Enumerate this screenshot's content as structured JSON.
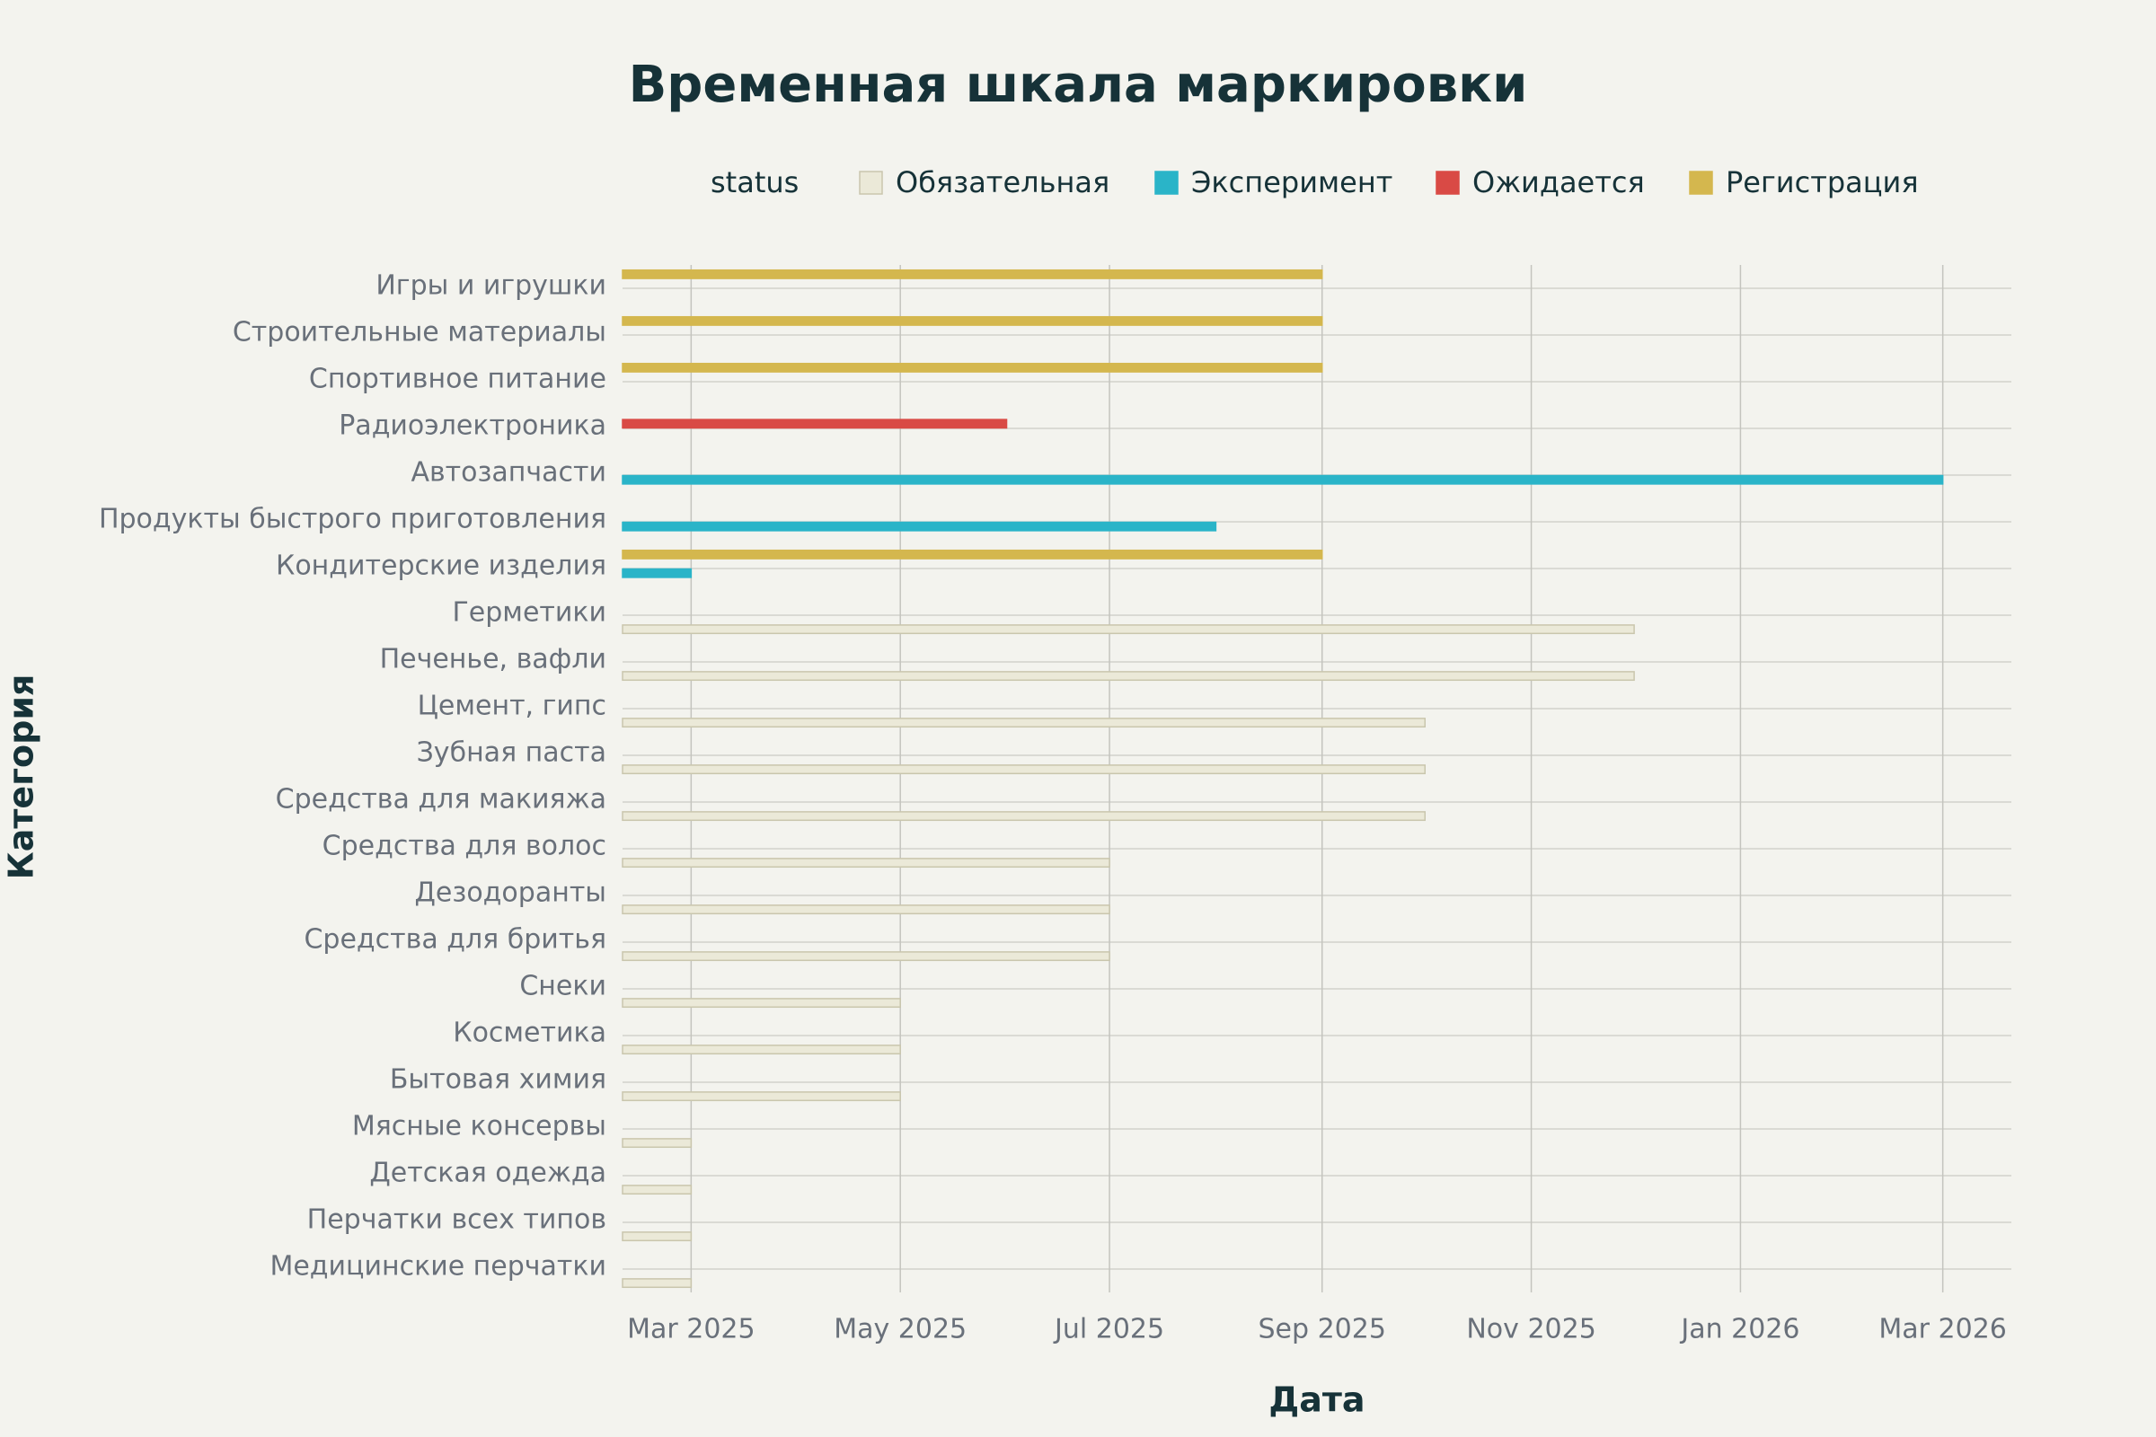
{
  "chart_data": {
    "type": "timeline",
    "title": "Временная шкала маркировки",
    "x_label": "Дата",
    "y_label": "Категория",
    "legend_title": "status",
    "categories": [
      "Игры и игрушки",
      "Строительные материалы",
      "Спортивное питание",
      "Радиоэлектроника",
      "Автозапчасти",
      "Продукты быстрого приготовления",
      "Кондитерские изделия",
      "Герметики",
      "Печенье, вафли",
      "Цемент, гипс",
      "Зубная паста",
      "Средства для макияжа",
      "Средства для волос",
      "Дезодоранты",
      "Средства для бритья",
      "Снеки",
      "Косметика",
      "Бытовая химия",
      "Мясные консервы",
      "Детская одежда",
      "Перчатки всех типов",
      "Медицинские перчатки"
    ],
    "xlim": [
      "2025-02-09",
      "2026-03-21"
    ],
    "xticks": [
      {
        "value": "2025-03-01",
        "label": "Mar 2025"
      },
      {
        "value": "2025-05-01",
        "label": "May 2025"
      },
      {
        "value": "2025-07-01",
        "label": "Jul 2025"
      },
      {
        "value": "2025-09-01",
        "label": "Sep 2025"
      },
      {
        "value": "2025-11-01",
        "label": "Nov 2025"
      },
      {
        "value": "2026-01-01",
        "label": "Jan 2026"
      },
      {
        "value": "2026-03-01",
        "label": "Mar 2026"
      }
    ],
    "grid": true,
    "series": [
      {
        "name": "Обязательная",
        "color": "#ebe9d8",
        "tasks": [
          {
            "category": "Герметики",
            "start": "2025-02-09",
            "end": "2025-12-01"
          },
          {
            "category": "Печенье, вафли",
            "start": "2025-02-09",
            "end": "2025-12-01"
          },
          {
            "category": "Цемент, гипс",
            "start": "2025-02-09",
            "end": "2025-10-01"
          },
          {
            "category": "Зубная паста",
            "start": "2025-02-09",
            "end": "2025-10-01"
          },
          {
            "category": "Средства для макияжа",
            "start": "2025-02-09",
            "end": "2025-10-01"
          },
          {
            "category": "Средства для волос",
            "start": "2025-02-09",
            "end": "2025-07-01"
          },
          {
            "category": "Дезодоранты",
            "start": "2025-02-09",
            "end": "2025-07-01"
          },
          {
            "category": "Средства для бритья",
            "start": "2025-02-09",
            "end": "2025-07-01"
          },
          {
            "category": "Снеки",
            "start": "2025-02-09",
            "end": "2025-05-01"
          },
          {
            "category": "Косметика",
            "start": "2025-02-09",
            "end": "2025-05-01"
          },
          {
            "category": "Бытовая химия",
            "start": "2025-02-09",
            "end": "2025-05-01"
          },
          {
            "category": "Мясные консервы",
            "start": "2025-02-09",
            "end": "2025-03-01"
          },
          {
            "category": "Детская одежда",
            "start": "2025-02-09",
            "end": "2025-03-01"
          },
          {
            "category": "Перчатки всех типов",
            "start": "2025-02-09",
            "end": "2025-03-01"
          },
          {
            "category": "Медицинские перчатки",
            "start": "2025-02-09",
            "end": "2025-03-01"
          }
        ]
      },
      {
        "name": "Эксперимент",
        "color": "#2ab4c8",
        "tasks": [
          {
            "category": "Автозапчасти",
            "start": "2025-02-09",
            "end": "2026-03-01"
          },
          {
            "category": "Продукты быстрого приготовления",
            "start": "2025-02-09",
            "end": "2025-08-01"
          },
          {
            "category": "Кондитерские изделия",
            "start": "2025-02-09",
            "end": "2025-03-01"
          }
        ]
      },
      {
        "name": "Ожидается",
        "color": "#d94a45",
        "tasks": [
          {
            "category": "Радиоэлектроника",
            "start": "2025-02-09",
            "end": "2025-06-01"
          }
        ]
      },
      {
        "name": "Регистрация",
        "color": "#d4b74e",
        "tasks": [
          {
            "category": "Игры и игрушки",
            "start": "2025-02-09",
            "end": "2025-09-01"
          },
          {
            "category": "Строительные материалы",
            "start": "2025-02-09",
            "end": "2025-09-01"
          },
          {
            "category": "Спортивное питание",
            "start": "2025-02-09",
            "end": "2025-09-01"
          },
          {
            "category": "Кондитерские изделия",
            "start": "2025-02-09",
            "end": "2025-09-01"
          }
        ]
      }
    ]
  }
}
